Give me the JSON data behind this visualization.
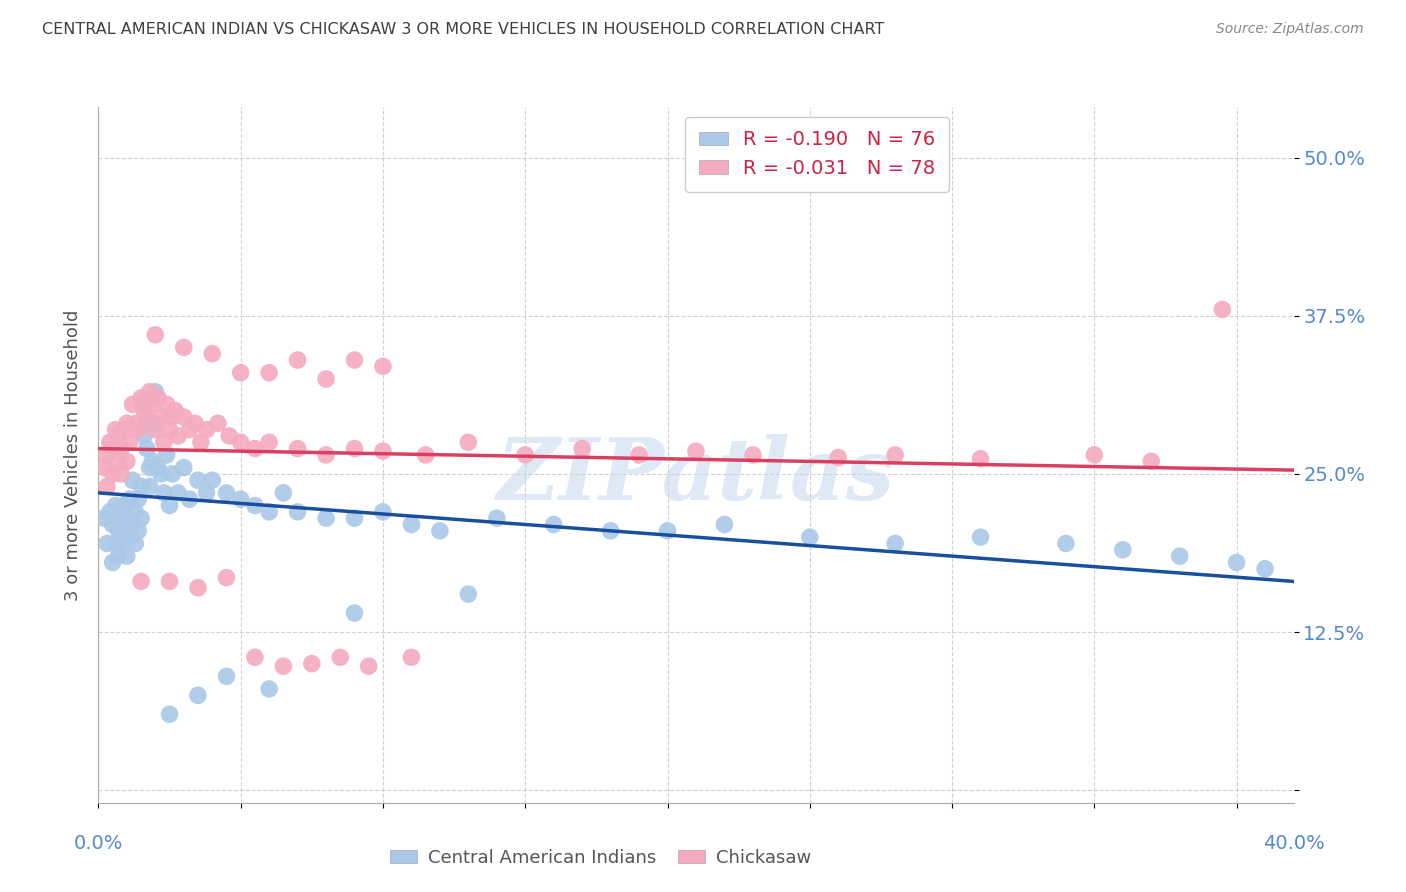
{
  "title": "CENTRAL AMERICAN INDIAN VS CHICKASAW 3 OR MORE VEHICLES IN HOUSEHOLD CORRELATION CHART",
  "source": "Source: ZipAtlas.com",
  "ylabel": "3 or more Vehicles in Household",
  "ytick_values": [
    0.0,
    0.125,
    0.25,
    0.375,
    0.5
  ],
  "ytick_labels": [
    "",
    "12.5%",
    "25.0%",
    "37.5%",
    "50.0%"
  ],
  "xtick_values": [
    0.0,
    0.05,
    0.1,
    0.15,
    0.2,
    0.25,
    0.3,
    0.35,
    0.4
  ],
  "xlim": [
    0.0,
    0.42
  ],
  "ylim": [
    -0.01,
    0.54
  ],
  "legend_blue_r": "R = -0.190",
  "legend_blue_n": "N = 76",
  "legend_pink_r": "R = -0.031",
  "legend_pink_n": "N = 78",
  "blue_color": "#aac8e8",
  "pink_color": "#f4aabf",
  "blue_line_color": "#1a4f9e",
  "pink_line_color": "#d94060",
  "watermark": "ZIPatlas",
  "blue_scatter_x": [
    0.002,
    0.003,
    0.004,
    0.005,
    0.005,
    0.006,
    0.006,
    0.007,
    0.007,
    0.008,
    0.008,
    0.009,
    0.009,
    0.01,
    0.01,
    0.011,
    0.011,
    0.012,
    0.012,
    0.013,
    0.013,
    0.014,
    0.014,
    0.015,
    0.015,
    0.016,
    0.016,
    0.017,
    0.017,
    0.018,
    0.018,
    0.019,
    0.02,
    0.02,
    0.021,
    0.022,
    0.023,
    0.024,
    0.025,
    0.026,
    0.028,
    0.03,
    0.032,
    0.035,
    0.038,
    0.04,
    0.045,
    0.05,
    0.055,
    0.06,
    0.065,
    0.07,
    0.08,
    0.09,
    0.1,
    0.11,
    0.12,
    0.14,
    0.16,
    0.18,
    0.2,
    0.22,
    0.25,
    0.28,
    0.31,
    0.34,
    0.36,
    0.38,
    0.4,
    0.41,
    0.025,
    0.035,
    0.045,
    0.06,
    0.09,
    0.13
  ],
  "blue_scatter_y": [
    0.215,
    0.195,
    0.22,
    0.18,
    0.21,
    0.225,
    0.195,
    0.205,
    0.185,
    0.215,
    0.195,
    0.225,
    0.2,
    0.215,
    0.185,
    0.23,
    0.2,
    0.245,
    0.21,
    0.22,
    0.195,
    0.23,
    0.205,
    0.215,
    0.24,
    0.28,
    0.305,
    0.29,
    0.27,
    0.255,
    0.24,
    0.26,
    0.29,
    0.315,
    0.255,
    0.25,
    0.235,
    0.265,
    0.225,
    0.25,
    0.235,
    0.255,
    0.23,
    0.245,
    0.235,
    0.245,
    0.235,
    0.23,
    0.225,
    0.22,
    0.235,
    0.22,
    0.215,
    0.215,
    0.22,
    0.21,
    0.205,
    0.215,
    0.21,
    0.205,
    0.205,
    0.21,
    0.2,
    0.195,
    0.2,
    0.195,
    0.19,
    0.185,
    0.18,
    0.175,
    0.06,
    0.075,
    0.09,
    0.08,
    0.14,
    0.155
  ],
  "pink_scatter_x": [
    0.002,
    0.003,
    0.003,
    0.004,
    0.005,
    0.005,
    0.006,
    0.007,
    0.007,
    0.008,
    0.008,
    0.009,
    0.01,
    0.01,
    0.011,
    0.012,
    0.013,
    0.014,
    0.015,
    0.016,
    0.017,
    0.018,
    0.019,
    0.02,
    0.021,
    0.022,
    0.023,
    0.024,
    0.025,
    0.026,
    0.027,
    0.028,
    0.03,
    0.032,
    0.034,
    0.036,
    0.038,
    0.042,
    0.046,
    0.05,
    0.055,
    0.06,
    0.07,
    0.08,
    0.09,
    0.1,
    0.115,
    0.13,
    0.15,
    0.17,
    0.19,
    0.21,
    0.23,
    0.26,
    0.28,
    0.31,
    0.35,
    0.37,
    0.395,
    0.02,
    0.03,
    0.04,
    0.05,
    0.06,
    0.07,
    0.08,
    0.09,
    0.1,
    0.015,
    0.025,
    0.035,
    0.045,
    0.055,
    0.065,
    0.075,
    0.085,
    0.095,
    0.11
  ],
  "pink_scatter_y": [
    0.255,
    0.265,
    0.24,
    0.275,
    0.25,
    0.27,
    0.285,
    0.26,
    0.28,
    0.27,
    0.25,
    0.285,
    0.26,
    0.29,
    0.275,
    0.305,
    0.29,
    0.285,
    0.31,
    0.3,
    0.295,
    0.315,
    0.305,
    0.285,
    0.31,
    0.295,
    0.275,
    0.305,
    0.285,
    0.295,
    0.3,
    0.28,
    0.295,
    0.285,
    0.29,
    0.275,
    0.285,
    0.29,
    0.28,
    0.275,
    0.27,
    0.275,
    0.27,
    0.265,
    0.27,
    0.268,
    0.265,
    0.275,
    0.265,
    0.27,
    0.265,
    0.268,
    0.265,
    0.263,
    0.265,
    0.262,
    0.265,
    0.26,
    0.38,
    0.36,
    0.35,
    0.345,
    0.33,
    0.33,
    0.34,
    0.325,
    0.34,
    0.335,
    0.165,
    0.165,
    0.16,
    0.168,
    0.105,
    0.098,
    0.1,
    0.105,
    0.098,
    0.105
  ],
  "blue_line_x": [
    0.0,
    0.42
  ],
  "blue_line_y": [
    0.235,
    0.165
  ],
  "pink_line_x": [
    0.0,
    0.42
  ],
  "pink_line_y": [
    0.27,
    0.253
  ],
  "background_color": "#ffffff",
  "grid_color": "#cccccc",
  "title_color": "#404040",
  "source_color": "#888888",
  "axis_color": "#5588cc",
  "ylabel_color": "#555555"
}
